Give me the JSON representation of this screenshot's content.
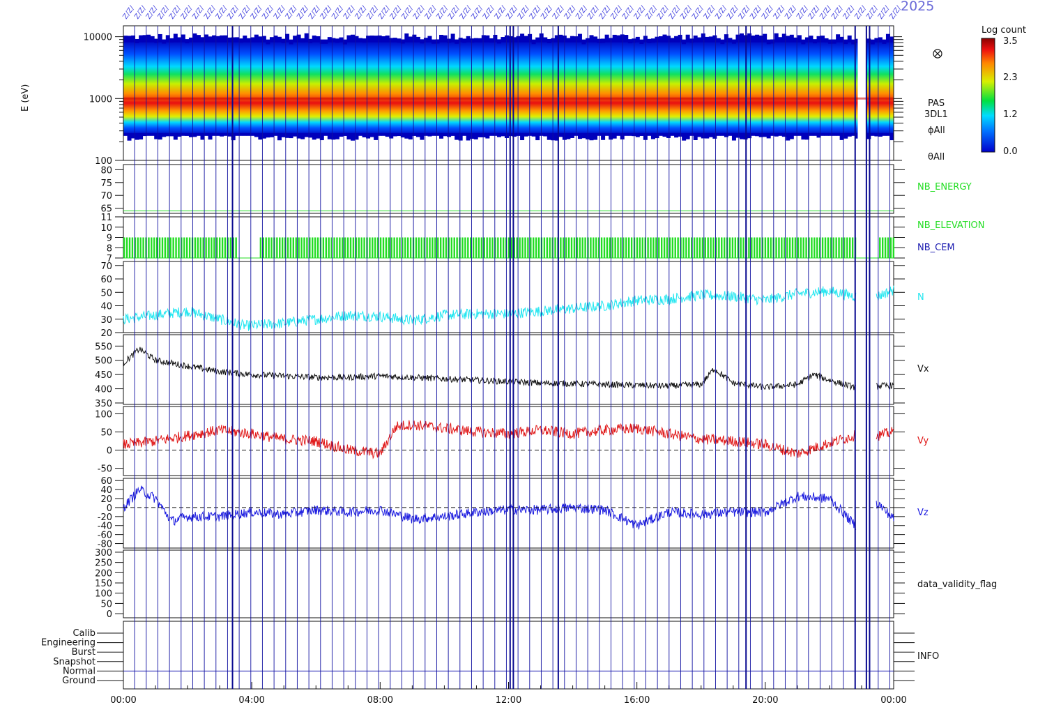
{
  "header": {
    "year_text": "2025"
  },
  "colorbar": {
    "title": "Log count",
    "tick_labels": [
      "3.5",
      "2.3",
      "1.2",
      "0.0"
    ],
    "range": [
      0.0,
      3.5
    ]
  },
  "time_axis": {
    "tick_labels": [
      "00:00",
      "04:00",
      "08:00",
      "12:00",
      "16:00",
      "20:00",
      "00:00"
    ],
    "range_hours": [
      0,
      24
    ]
  },
  "colors": {
    "spectrogram_background": "#0000cc",
    "nb_green": "#22dd22",
    "n_cyan": "#22e6f0",
    "vx_black": "#111111",
    "vy_red": "#e01818",
    "vz_blue": "#1a1ae0",
    "cem_label_blue": "#1a1ab0",
    "gap_line_blue": "#1010a0"
  },
  "chart_data": [
    {
      "type": "heatmap",
      "ylabel": "E (eV)",
      "yscale": "log",
      "ylim": [
        100,
        15000
      ],
      "y_tick_labels": [
        "10000",
        "1000",
        "100"
      ],
      "side_labels": [
        "PAS",
        "3DL1",
        "ϕAll",
        "θAll"
      ],
      "side_icon": "cross-circle-icon",
      "peak_energy_eV": 1000,
      "upper_edge_eV": 9000,
      "lower_edge_eV": 250
    },
    {
      "type": "line",
      "series": [
        {
          "name": "NB_ENERGY",
          "values": [
            64,
            64
          ]
        }
      ],
      "x": [
        0,
        24
      ],
      "y_tick_labels": [
        "80",
        "75",
        "70",
        "65"
      ],
      "ylim": [
        63,
        82
      ]
    },
    {
      "type": "bar",
      "series": [
        {
          "name": "NB_ELEVATION",
          "values": [
            7,
            9
          ]
        },
        {
          "name": "NB_CEM",
          "values": [
            7,
            7
          ]
        }
      ],
      "y_tick_labels": [
        "11",
        "10",
        "9",
        "8",
        "7"
      ],
      "ylim": [
        7,
        11
      ],
      "data_gaps_hours": [
        [
          3.5,
          4.2
        ],
        [
          22.8,
          23.5
        ]
      ]
    },
    {
      "type": "line",
      "series": [
        {
          "name": "N",
          "x": [
            0,
            1,
            2,
            3,
            3.8,
            5,
            6,
            7,
            8,
            9,
            10,
            11,
            12,
            13,
            14,
            15,
            16,
            17,
            18,
            19,
            20,
            21,
            22,
            22.8,
            23.5,
            24
          ],
          "values": [
            30,
            33,
            36,
            30,
            25,
            27,
            30,
            33,
            32,
            29,
            33,
            34,
            34,
            36,
            38,
            40,
            44,
            45,
            48,
            47,
            44,
            49,
            51,
            47,
            47,
            52
          ]
        }
      ],
      "y_tick_labels": [
        "70",
        "60",
        "50",
        "40",
        "30",
        "20"
      ],
      "ylim": [
        20,
        73
      ]
    },
    {
      "type": "line",
      "series": [
        {
          "name": "Vx",
          "x": [
            0,
            0.5,
            1,
            2,
            3,
            4,
            5,
            6,
            7,
            8,
            9,
            10,
            11,
            12,
            13,
            14,
            15,
            16,
            17,
            18,
            18.4,
            19,
            20,
            21,
            21.5,
            22,
            22.8,
            23.5,
            24
          ],
          "values": [
            490,
            540,
            500,
            480,
            460,
            450,
            445,
            440,
            440,
            445,
            440,
            435,
            430,
            425,
            420,
            418,
            415,
            412,
            410,
            415,
            470,
            420,
            405,
            415,
            450,
            430,
            405,
            410,
            412
          ]
        }
      ],
      "y_tick_labels": [
        "550",
        "500",
        "450",
        "400",
        "350"
      ],
      "ylim": [
        345,
        590
      ]
    },
    {
      "type": "line",
      "series": [
        {
          "name": "Vy",
          "x": [
            0,
            1,
            2,
            3,
            4,
            5,
            6,
            7,
            8,
            8.5,
            9,
            10,
            11,
            12,
            13,
            14,
            15,
            16,
            17,
            18,
            19,
            20,
            21,
            22,
            22.8,
            23.5,
            24
          ],
          "values": [
            15,
            25,
            40,
            55,
            45,
            30,
            25,
            0,
            -10,
            65,
            70,
            60,
            50,
            45,
            55,
            45,
            55,
            60,
            45,
            30,
            25,
            15,
            -10,
            20,
            40,
            40,
            50
          ]
        }
      ],
      "y_tick_labels": [
        "100",
        "50",
        "0",
        "-50"
      ],
      "ylim": [
        -70,
        120
      ],
      "reference_line": 0
    },
    {
      "type": "line",
      "series": [
        {
          "name": "Vz",
          "x": [
            0,
            0.5,
            1,
            1.5,
            2,
            3,
            4,
            5,
            6,
            7,
            8,
            9,
            10,
            11,
            12,
            13,
            14,
            15,
            16,
            17,
            18,
            19,
            20,
            21,
            22,
            22.8,
            23.5,
            24
          ],
          "values": [
            0,
            40,
            20,
            -30,
            -20,
            -20,
            -10,
            -15,
            -5,
            -10,
            -5,
            -25,
            -20,
            -10,
            -5,
            -5,
            0,
            -5,
            -40,
            -10,
            -15,
            -10,
            -10,
            25,
            20,
            -40,
            10,
            -25
          ]
        }
      ],
      "y_tick_labels": [
        "60",
        "40",
        "20",
        "0",
        "-20",
        "-40",
        "-60",
        "-80"
      ],
      "ylim": [
        -90,
        65
      ],
      "reference_line": 0
    },
    {
      "type": "line",
      "series": [
        {
          "name": "data_validity_flag",
          "values": []
        }
      ],
      "y_tick_labels": [
        "300",
        "250",
        "200",
        "150",
        "100",
        "50",
        "0"
      ],
      "ylim": [
        -20,
        310
      ]
    },
    {
      "type": "table",
      "series": [
        {
          "name": "INFO",
          "values": []
        }
      ],
      "y_tick_labels": [
        "Calib",
        "Engineering",
        "Burst",
        "Snapshot",
        "Normal",
        "Ground"
      ]
    }
  ]
}
